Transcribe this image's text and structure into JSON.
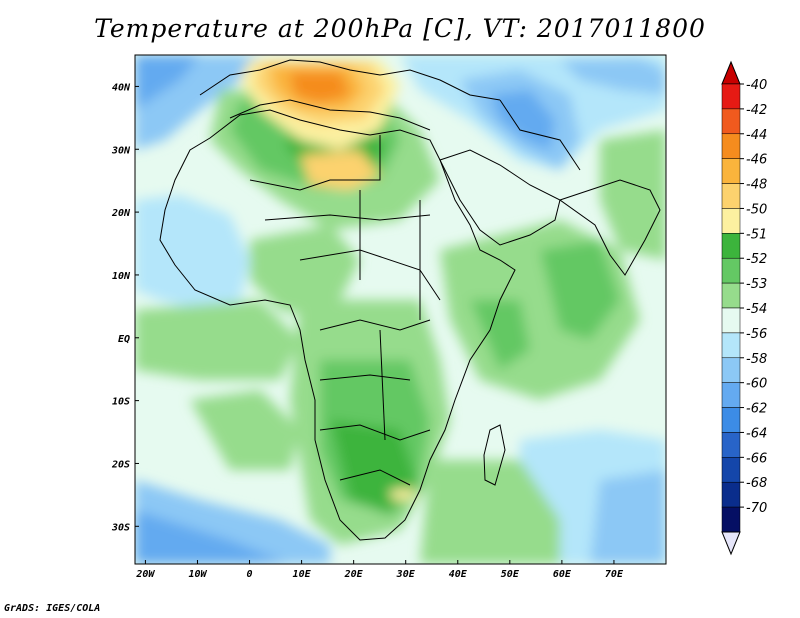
{
  "title": "Temperature at 200hPa [C], VT: 2017011800",
  "credit": "GrADS: IGES/COLA",
  "map": {
    "lon_ticks": [
      "20W",
      "10W",
      "0",
      "10E",
      "20E",
      "30E",
      "40E",
      "50E",
      "60E",
      "70E"
    ],
    "lat_ticks": [
      "40N",
      "30N",
      "20N",
      "10N",
      "EQ",
      "10S",
      "20S",
      "30S"
    ],
    "lon_range": [
      -22,
      80
    ],
    "lat_range": [
      -36,
      45
    ]
  },
  "colorbar": {
    "labels": [
      "-40",
      "-42",
      "-44",
      "-46",
      "-48",
      "-50",
      "-51",
      "-52",
      "-53",
      "-54",
      "-56",
      "-58",
      "-60",
      "-62",
      "-64",
      "-66",
      "-68",
      "-70"
    ],
    "colors": [
      "#e61a14",
      "#f05a1e",
      "#f58c1e",
      "#fab43c",
      "#fcd26e",
      "#fcf0a0",
      "#3cb43c",
      "#64c864",
      "#96dc8c",
      "#e6faf0",
      "#b4e6fa",
      "#8cc8f5",
      "#64aaf0",
      "#3c8ce6",
      "#2864c8",
      "#1446aa",
      "#0a2d8c",
      "#050f64"
    ],
    "triangle_top_color": "#c80000",
    "triangle_bottom_color": "#e6e6fa"
  }
}
